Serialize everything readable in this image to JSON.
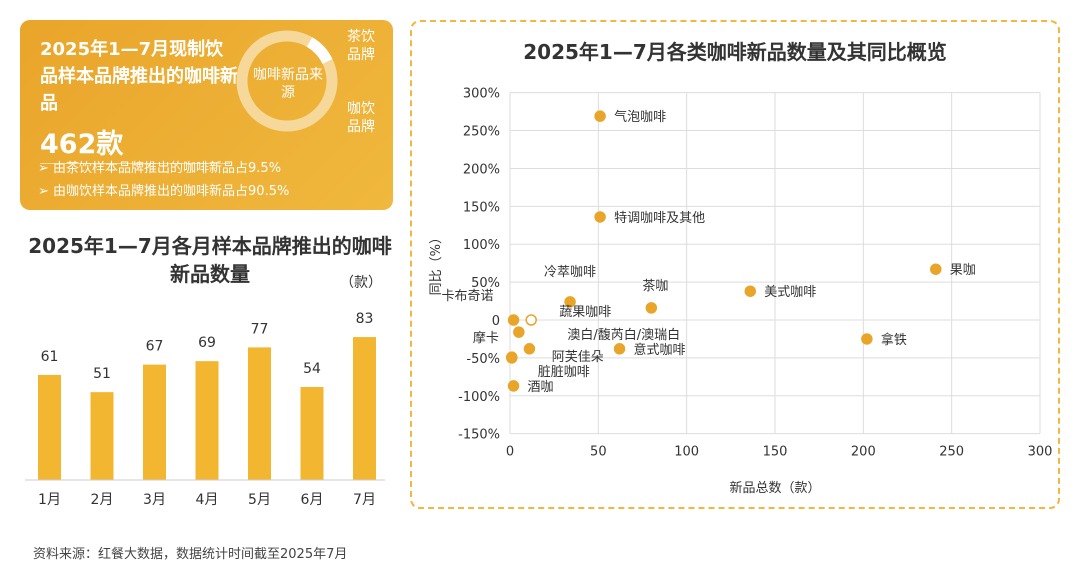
{
  "card": {
    "title": "2025年1—7月现制饮品样本品牌推出的咖啡新品",
    "total": "462款",
    "bullet1": "由茶饮样本品牌推出的咖啡新品占9.5%",
    "bullet2": "由咖饮样本品牌推出的咖啡新品占90.5%",
    "donut_center": "咖啡新品来源",
    "donut_label_tea": "茶饮品牌",
    "donut_label_coffee": "咖饮品牌",
    "tea_share": 9.5,
    "coffee_share": 90.5
  },
  "source": "资料来源：红餐大数据，数据统计时间截至2025年7月",
  "colors": {
    "accent": "#f0b83e",
    "bar": "#f3b630",
    "point": "#e9a52a"
  },
  "chart_data": [
    {
      "type": "bar",
      "title": "2025年1—7月各月样本品牌推出的咖啡新品数量",
      "unit": "（款）",
      "categories": [
        "1月",
        "2月",
        "3月",
        "4月",
        "5月",
        "6月",
        "7月"
      ],
      "values": [
        61,
        51,
        67,
        69,
        77,
        54,
        83
      ]
    },
    {
      "type": "scatter",
      "title": "2025年1—7月各类咖啡新品数量及其同比概览",
      "xlabel": "新品总数（款）",
      "ylabel": "同比（%）",
      "xlim": [
        0,
        300
      ],
      "ylim": [
        -150,
        300
      ],
      "xticks": [
        "0",
        "50",
        "100",
        "150",
        "200",
        "250",
        "300"
      ],
      "yticks": [
        "-150%",
        "-100%",
        "-50%",
        "0",
        "50%",
        "100%",
        "150%",
        "200%",
        "250%",
        "300%"
      ],
      "grid": true,
      "points": [
        {
          "label": "气泡咖啡",
          "x": 51,
          "y": 269
        },
        {
          "label": "特调咖啡及其他",
          "x": 51,
          "y": 136
        },
        {
          "label": "冷萃咖啡",
          "x": 34,
          "y": 24
        },
        {
          "label": "茶咖",
          "x": 80,
          "y": 16
        },
        {
          "label": "美式咖啡",
          "x": 136,
          "y": 38
        },
        {
          "label": "果咖",
          "x": 241,
          "y": 67
        },
        {
          "label": "拿铁",
          "x": 202,
          "y": -25
        },
        {
          "label": "卡布奇诺",
          "x": 2,
          "y": 0
        },
        {
          "label": "蔬果咖啡",
          "x": 12,
          "y": 0,
          "hollow": true
        },
        {
          "label": "摩卡",
          "x": 5,
          "y": -16
        },
        {
          "label": "澳白/馥芮白/澳瑞白",
          "x": 11,
          "y": -38
        },
        {
          "label": "意式咖啡",
          "x": 62,
          "y": -38
        },
        {
          "label": "阿芙佳朵",
          "x": 1,
          "y": -49
        },
        {
          "label": "脏脏咖啡",
          "x": 1,
          "y": -50
        },
        {
          "label": "酒咖",
          "x": 2,
          "y": -87
        }
      ]
    }
  ]
}
